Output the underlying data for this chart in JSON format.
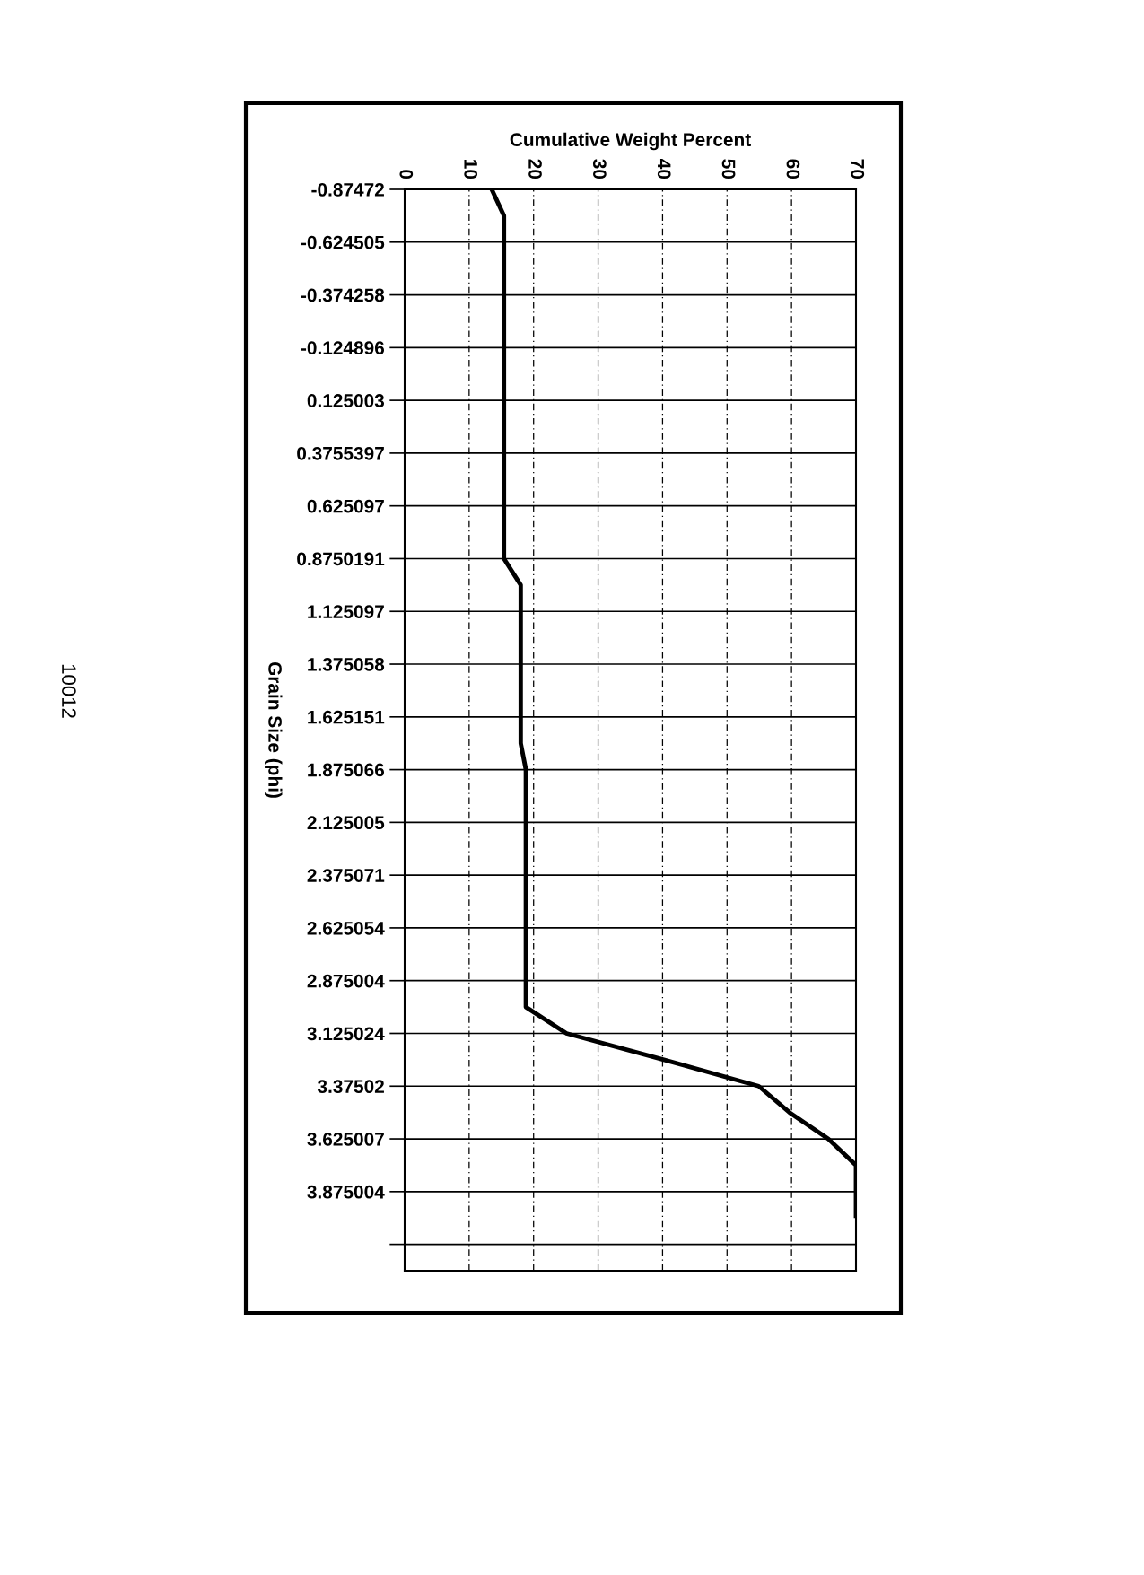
{
  "chart_data": {
    "type": "line",
    "orientation": "horizontal",
    "xlabel": "Cumulative Weight Percent",
    "ylabel": "Grain Size (phi)",
    "categories": [
      "-0.87472",
      null,
      "-0.624505",
      null,
      "-0.374258",
      null,
      "-0.124896",
      null,
      "0.125003",
      null,
      "0.3755397",
      null,
      "0.625097",
      null,
      "0.8750191",
      null,
      "1.125097",
      null,
      "1.375058",
      null,
      "1.625151",
      null,
      "1.875066",
      null,
      "2.125005",
      null,
      "2.375071",
      null,
      "2.625054",
      null,
      "2.875004",
      null,
      "3.125024",
      null,
      "3.37502",
      null,
      "3.625007",
      null,
      "3.875004",
      null,
      null
    ],
    "series": [
      {
        "color": "#000000",
        "values": [
          13.5,
          15.4,
          15.4,
          15.4,
          15.4,
          15.4,
          15.4,
          15.4,
          15.4,
          15.4,
          15.4,
          15.4,
          15.4,
          15.4,
          15.4,
          18.0,
          18.0,
          18.0,
          18.0,
          18.0,
          18.0,
          18.0,
          18.8,
          18.8,
          18.8,
          18.8,
          18.8,
          18.8,
          18.8,
          18.8,
          18.8,
          18.8,
          25.1,
          40.2,
          54.9,
          59.7,
          65.7,
          70,
          70,
          70,
          null
        ]
      }
    ],
    "xlim": [
      0,
      70
    ],
    "xticks": [
      0,
      10,
      20,
      30,
      40,
      50,
      60,
      70
    ],
    "grid": true,
    "marker": "none",
    "line_style": "solid",
    "annotations": [
      "10012"
    ]
  }
}
